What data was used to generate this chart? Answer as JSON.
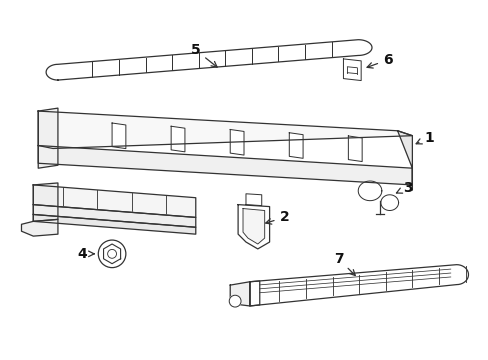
{
  "figsize": [
    4.89,
    3.6
  ],
  "dpi": 100,
  "background_color": "#ffffff",
  "line_color": "#333333",
  "line_width": 0.9
}
